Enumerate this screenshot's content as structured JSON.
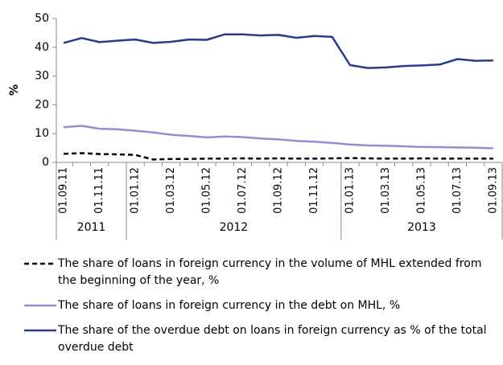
{
  "chart_data": {
    "type": "line",
    "y_label": "%",
    "categories": [
      "01.09.11",
      null,
      "01.11.11",
      null,
      "01.01.12",
      null,
      "01.03.12",
      null,
      "01.05.12",
      null,
      "01.07.12",
      null,
      "01.09.12",
      null,
      "01.11.12",
      null,
      "01.01.13",
      null,
      "01.03.13",
      null,
      "01.05.13",
      null,
      "01.07.13",
      null,
      "01.09.13"
    ],
    "year_groups": [
      {
        "label": "2011",
        "start": 0,
        "end": 3
      },
      {
        "label": "2012",
        "start": 4,
        "end": 15
      },
      {
        "label": "2013",
        "start": 16,
        "end": 24
      }
    ],
    "ylim": [
      0,
      50
    ],
    "yticks": [
      0,
      10,
      20,
      30,
      40,
      50
    ],
    "grid": false,
    "series": [
      {
        "name": "The share of loans in foreign currency in the volume of MHL extended from the beginning of the year, %",
        "color": "#000000",
        "dashed": true,
        "values": [
          3.0,
          3.2,
          2.9,
          2.8,
          2.6,
          1.0,
          1.2,
          1.2,
          1.3,
          1.3,
          1.4,
          1.3,
          1.4,
          1.3,
          1.3,
          1.4,
          1.5,
          1.4,
          1.3,
          1.3,
          1.4,
          1.3,
          1.3,
          1.3,
          1.3
        ]
      },
      {
        "name": "The share of loans in foreign currency in the debt on MHL, %",
        "color": "#8e90cf",
        "dashed": false,
        "values": [
          12.2,
          12.7,
          11.7,
          11.5,
          11.0,
          10.4,
          9.6,
          9.2,
          8.7,
          9.0,
          8.8,
          8.3,
          8.0,
          7.5,
          7.2,
          6.8,
          6.2,
          5.9,
          5.8,
          5.6,
          5.4,
          5.3,
          5.2,
          5.1,
          4.9
        ]
      },
      {
        "name": "The share of the overdue debt on loans in foreign currency as % of the total overdue debt",
        "color": "#263a8e",
        "dashed": false,
        "values": [
          41.5,
          43.2,
          41.8,
          42.3,
          42.7,
          41.5,
          41.9,
          42.7,
          42.6,
          44.5,
          44.5,
          44.1,
          44.3,
          43.3,
          43.9,
          43.6,
          33.8,
          32.8,
          33.0,
          33.5,
          33.7,
          34.0,
          35.9,
          35.3,
          35.4
        ]
      }
    ]
  }
}
